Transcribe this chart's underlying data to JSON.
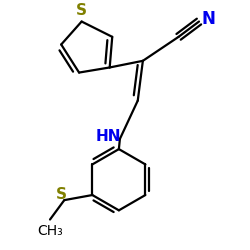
{
  "bg_color": "#ffffff",
  "bond_color": "#000000",
  "S_thiophene_color": "#808000",
  "S_thioether_color": "#808000",
  "N_color": "#0000ee",
  "C_color": "#000000",
  "line_width": 1.6,
  "figsize": [
    2.5,
    2.5
  ],
  "dpi": 100,
  "xlim": [
    -1.2,
    2.2
  ],
  "ylim": [
    -2.8,
    2.0
  ]
}
